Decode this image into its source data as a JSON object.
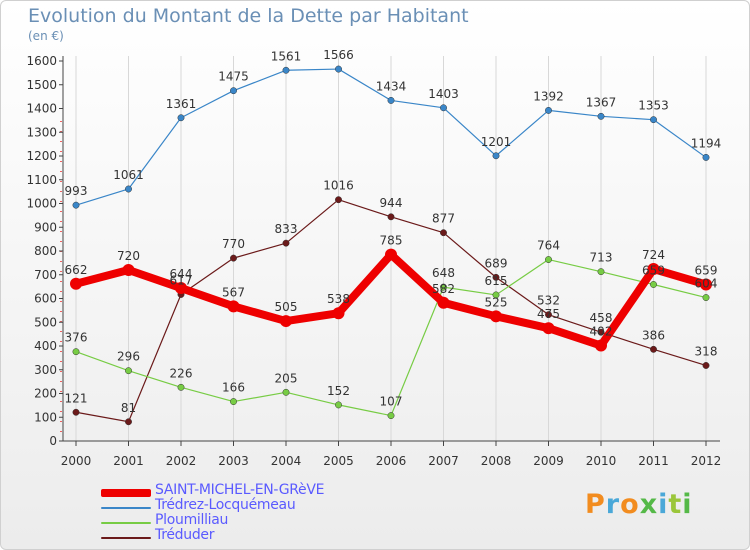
{
  "title": "Evolution du Montant de la Dette par Habitant",
  "unit": "(en €)",
  "logo_text": "Proxiti",
  "chart_data": {
    "type": "line",
    "x": [
      "2000",
      "2001",
      "2002",
      "2003",
      "2004",
      "2005",
      "2006",
      "2007",
      "2008",
      "2009",
      "2010",
      "2011",
      "2012"
    ],
    "ylim": [
      0,
      1600
    ],
    "yticks": [
      0,
      100,
      200,
      300,
      400,
      500,
      600,
      700,
      800,
      900,
      1000,
      1100,
      1200,
      1300,
      1400,
      1500,
      1600
    ],
    "grid": "vertical",
    "legend_position": "bottom-left",
    "series": [
      {
        "name": "SAINT-MICHEL-EN-GRèVE",
        "color": "#ee0000",
        "values": [
          662,
          720,
          644,
          567,
          505,
          538,
          785,
          582,
          525,
          475,
          402,
          724,
          659
        ],
        "labels": [
          "662",
          "720",
          "644",
          "567",
          "505",
          "538",
          "785",
          "582",
          "525",
          "475",
          "402",
          "724",
          "659"
        ]
      },
      {
        "name": "Trédrez-Locquémeau",
        "color": "#3a86c8",
        "values": [
          993,
          1061,
          1361,
          1475,
          1561,
          1566,
          1434,
          1403,
          1201,
          1392,
          1367,
          1353,
          1194
        ],
        "labels": [
          "993",
          "1061",
          "1361",
          "1475",
          "1561",
          "1566",
          "1434",
          "1403",
          "1201",
          "1392",
          "1367",
          "1353",
          "1194"
        ]
      },
      {
        "name": "Ploumilliau",
        "color": "#77cc44",
        "values": [
          376,
          296,
          226,
          166,
          205,
          152,
          107,
          648,
          615,
          764,
          713,
          659,
          604
        ],
        "labels": [
          "376",
          "296",
          "226",
          "166",
          "205",
          "152",
          "107",
          "648",
          "615",
          "764",
          "713",
          "659",
          "604"
        ]
      },
      {
        "name": "Tréduder",
        "color": "#6b1a1a",
        "values": [
          121,
          81,
          617,
          770,
          833,
          1016,
          944,
          877,
          689,
          532,
          458,
          386,
          318
        ],
        "labels": [
          "121",
          "81",
          "617",
          "770",
          "833",
          "1016",
          "944",
          "877",
          "689",
          "532",
          "458",
          "386",
          "318"
        ]
      }
    ]
  }
}
